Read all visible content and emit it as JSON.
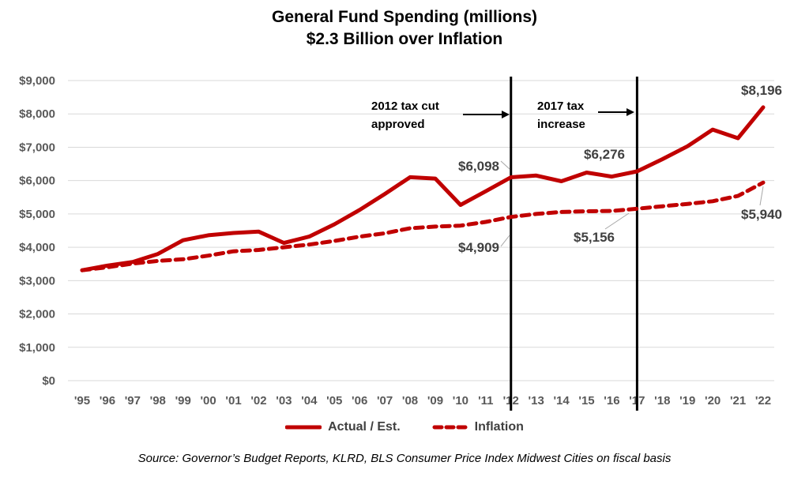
{
  "chart_data": {
    "type": "line",
    "title": "General Fund Spending (millions)",
    "subtitle": "$2.3 Billion over Inflation",
    "categories": [
      "'95",
      "'96",
      "'97",
      "'98",
      "'99",
      "'00",
      "'01",
      "'02",
      "'03",
      "'04",
      "'05",
      "'06",
      "'07",
      "'08",
      "'09",
      "'10",
      "'11",
      "'12",
      "'13",
      "'14",
      "'15",
      "'16",
      "'17",
      "'18",
      "'19",
      "'20",
      "'21",
      "'22"
    ],
    "y_ticks": [
      "$0",
      "$1,000",
      "$2,000",
      "$3,000",
      "$4,000",
      "$5,000",
      "$6,000",
      "$7,000",
      "$8,000",
      "$9,000"
    ],
    "ylim": [
      0,
      9000
    ],
    "grid": true,
    "legend_position": "bottom",
    "series": [
      {
        "name": "Actual / Est.",
        "style": "solid",
        "color": "#c00000",
        "values": [
          3310,
          3450,
          3560,
          3800,
          4210,
          4360,
          4430,
          4470,
          4130,
          4320,
          4690,
          5120,
          5600,
          6100,
          6060,
          5270,
          5680,
          6098,
          6150,
          5980,
          6240,
          6120,
          6276,
          6640,
          7030,
          7530,
          7270,
          8196
        ]
      },
      {
        "name": "Inflation",
        "style": "dashed",
        "color": "#c00000",
        "values": [
          3310,
          3400,
          3510,
          3590,
          3640,
          3750,
          3880,
          3920,
          4000,
          4080,
          4190,
          4320,
          4420,
          4570,
          4620,
          4650,
          4760,
          4909,
          5000,
          5060,
          5080,
          5090,
          5156,
          5230,
          5300,
          5380,
          5540,
          5940
        ]
      }
    ],
    "data_labels": [
      {
        "series": 0,
        "index": 17,
        "text": "$6,098"
      },
      {
        "series": 1,
        "index": 17,
        "text": "$4,909"
      },
      {
        "series": 0,
        "index": 22,
        "text": "$6,276"
      },
      {
        "series": 1,
        "index": 22,
        "text": "$5,156"
      },
      {
        "series": 0,
        "index": 27,
        "text": "$8,196"
      },
      {
        "series": 1,
        "index": 27,
        "text": "$5,940"
      }
    ],
    "annotations": [
      {
        "index": 17,
        "lines": [
          "2012 tax cut",
          "approved"
        ]
      },
      {
        "index": 22,
        "lines": [
          "2017 tax",
          "increase"
        ]
      }
    ]
  },
  "source": "Source: Governor’s Budget Reports, KLRD, BLS Consumer Price Index Midwest Cities on fiscal basis"
}
